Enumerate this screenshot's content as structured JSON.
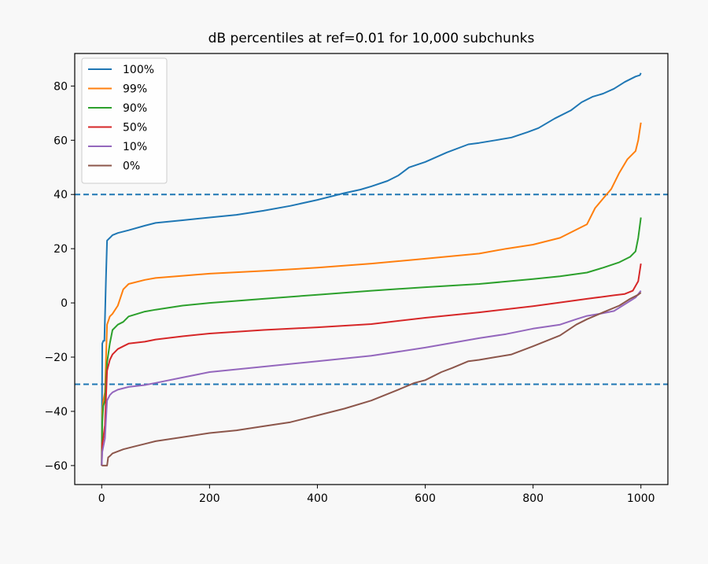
{
  "chart_data": {
    "type": "line",
    "title": "dB percentiles at ref=0.01 for 10,000 subchunks",
    "xlabel": "",
    "ylabel": "",
    "xlim": [
      -50,
      1050
    ],
    "ylim": [
      -67,
      92
    ],
    "x_ticks": [
      0,
      200,
      400,
      600,
      800,
      1000
    ],
    "y_ticks": [
      -60,
      -40,
      -20,
      0,
      20,
      40,
      60,
      80
    ],
    "legend_position": "top-left",
    "reference_lines": [
      {
        "y": 40,
        "color": "#1f77b4",
        "style": "dashed"
      },
      {
        "y": -30,
        "color": "#1f77b4",
        "style": "dashed"
      }
    ],
    "series": [
      {
        "name": "100%",
        "color": "#1f77b4",
        "points": [
          [
            0,
            -60
          ],
          [
            1,
            -15
          ],
          [
            3,
            -14
          ],
          [
            5,
            -14
          ],
          [
            8,
            10
          ],
          [
            10,
            23
          ],
          [
            15,
            24
          ],
          [
            20,
            25
          ],
          [
            30,
            25.8
          ],
          [
            50,
            26.8
          ],
          [
            80,
            28.5
          ],
          [
            100,
            29.5
          ],
          [
            150,
            30.5
          ],
          [
            200,
            31.5
          ],
          [
            250,
            32.5
          ],
          [
            300,
            34
          ],
          [
            350,
            35.8
          ],
          [
            400,
            38
          ],
          [
            450,
            40.5
          ],
          [
            480,
            41.8
          ],
          [
            500,
            43
          ],
          [
            530,
            45
          ],
          [
            550,
            47
          ],
          [
            570,
            50
          ],
          [
            600,
            52
          ],
          [
            640,
            55.5
          ],
          [
            680,
            58.5
          ],
          [
            700,
            59
          ],
          [
            730,
            60
          ],
          [
            760,
            61
          ],
          [
            790,
            63
          ],
          [
            810,
            64.5
          ],
          [
            840,
            68
          ],
          [
            870,
            71
          ],
          [
            890,
            74
          ],
          [
            910,
            76
          ],
          [
            930,
            77.2
          ],
          [
            950,
            79
          ],
          [
            970,
            81.5
          ],
          [
            990,
            83.5
          ],
          [
            998,
            84
          ],
          [
            1000,
            84.8
          ]
        ]
      },
      {
        "name": "99%",
        "color": "#ff7f0e",
        "points": [
          [
            0,
            -60
          ],
          [
            1,
            -40
          ],
          [
            3,
            -36
          ],
          [
            6,
            -33
          ],
          [
            10,
            -8
          ],
          [
            15,
            -5
          ],
          [
            20,
            -4
          ],
          [
            30,
            -1
          ],
          [
            40,
            5
          ],
          [
            50,
            7
          ],
          [
            80,
            8.5
          ],
          [
            100,
            9.2
          ],
          [
            150,
            10
          ],
          [
            200,
            10.8
          ],
          [
            300,
            11.8
          ],
          [
            400,
            13
          ],
          [
            500,
            14.5
          ],
          [
            600,
            16.3
          ],
          [
            700,
            18.2
          ],
          [
            750,
            20
          ],
          [
            800,
            21.5
          ],
          [
            850,
            24
          ],
          [
            880,
            27
          ],
          [
            900,
            29
          ],
          [
            915,
            35
          ],
          [
            930,
            38.5
          ],
          [
            945,
            42
          ],
          [
            960,
            48
          ],
          [
            975,
            53
          ],
          [
            990,
            56
          ],
          [
            995,
            60
          ],
          [
            1000,
            66.5
          ]
        ]
      },
      {
        "name": "90%",
        "color": "#2ca02c",
        "points": [
          [
            0,
            -60
          ],
          [
            1,
            -44
          ],
          [
            3,
            -38
          ],
          [
            6,
            -36
          ],
          [
            10,
            -22
          ],
          [
            15,
            -15
          ],
          [
            20,
            -10
          ],
          [
            30,
            -8
          ],
          [
            40,
            -7
          ],
          [
            50,
            -5
          ],
          [
            80,
            -3.2
          ],
          [
            100,
            -2.5
          ],
          [
            150,
            -1
          ],
          [
            200,
            0
          ],
          [
            300,
            1.5
          ],
          [
            400,
            3
          ],
          [
            500,
            4.5
          ],
          [
            600,
            5.8
          ],
          [
            700,
            7
          ],
          [
            800,
            8.8
          ],
          [
            850,
            9.8
          ],
          [
            900,
            11.2
          ],
          [
            930,
            13
          ],
          [
            960,
            15
          ],
          [
            980,
            17
          ],
          [
            990,
            19
          ],
          [
            995,
            24
          ],
          [
            1000,
            31.5
          ]
        ]
      },
      {
        "name": "50%",
        "color": "#d62728",
        "points": [
          [
            0,
            -60
          ],
          [
            1,
            -52
          ],
          [
            3,
            -50
          ],
          [
            6,
            -45
          ],
          [
            10,
            -25
          ],
          [
            15,
            -21
          ],
          [
            20,
            -19
          ],
          [
            30,
            -17
          ],
          [
            40,
            -16
          ],
          [
            50,
            -15
          ],
          [
            80,
            -14.3
          ],
          [
            100,
            -13.5
          ],
          [
            150,
            -12.3
          ],
          [
            200,
            -11.3
          ],
          [
            300,
            -10
          ],
          [
            400,
            -9
          ],
          [
            500,
            -7.8
          ],
          [
            600,
            -5.5
          ],
          [
            700,
            -3.5
          ],
          [
            800,
            -1.2
          ],
          [
            900,
            1.5
          ],
          [
            950,
            2.8
          ],
          [
            970,
            3.3
          ],
          [
            985,
            4.5
          ],
          [
            995,
            8
          ],
          [
            1000,
            14.5
          ]
        ]
      },
      {
        "name": "10%",
        "color": "#9467bd",
        "points": [
          [
            0,
            -60
          ],
          [
            1,
            -55
          ],
          [
            3,
            -53
          ],
          [
            6,
            -50
          ],
          [
            10,
            -36
          ],
          [
            15,
            -34
          ],
          [
            20,
            -33
          ],
          [
            30,
            -32
          ],
          [
            40,
            -31.5
          ],
          [
            50,
            -31
          ],
          [
            80,
            -30.3
          ],
          [
            100,
            -29.5
          ],
          [
            150,
            -27.5
          ],
          [
            200,
            -25.5
          ],
          [
            300,
            -23.5
          ],
          [
            400,
            -21.5
          ],
          [
            500,
            -19.5
          ],
          [
            600,
            -16.5
          ],
          [
            700,
            -13
          ],
          [
            750,
            -11.5
          ],
          [
            800,
            -9.5
          ],
          [
            850,
            -8
          ],
          [
            880,
            -6
          ],
          [
            900,
            -4.8
          ],
          [
            930,
            -3.8
          ],
          [
            950,
            -3
          ],
          [
            970,
            -0.5
          ],
          [
            990,
            2
          ],
          [
            1000,
            4.5
          ]
        ]
      },
      {
        "name": "0%",
        "color": "#8c564b",
        "points": [
          [
            0,
            -60
          ],
          [
            3,
            -60
          ],
          [
            6,
            -60
          ],
          [
            10,
            -60
          ],
          [
            12,
            -57
          ],
          [
            15,
            -56.5
          ],
          [
            20,
            -55.5
          ],
          [
            40,
            -54
          ],
          [
            60,
            -53
          ],
          [
            80,
            -52
          ],
          [
            100,
            -51
          ],
          [
            150,
            -49.5
          ],
          [
            200,
            -48
          ],
          [
            250,
            -47
          ],
          [
            300,
            -45.5
          ],
          [
            350,
            -44
          ],
          [
            400,
            -41.5
          ],
          [
            450,
            -39
          ],
          [
            500,
            -36
          ],
          [
            550,
            -32
          ],
          [
            580,
            -29.5
          ],
          [
            600,
            -28.5
          ],
          [
            630,
            -25.5
          ],
          [
            650,
            -24
          ],
          [
            680,
            -21.5
          ],
          [
            700,
            -21
          ],
          [
            730,
            -20
          ],
          [
            760,
            -19
          ],
          [
            800,
            -16
          ],
          [
            850,
            -12
          ],
          [
            880,
            -8
          ],
          [
            900,
            -6
          ],
          [
            930,
            -3.5
          ],
          [
            960,
            -1
          ],
          [
            980,
            1.5
          ],
          [
            995,
            3
          ],
          [
            1000,
            3.8
          ]
        ]
      }
    ]
  }
}
